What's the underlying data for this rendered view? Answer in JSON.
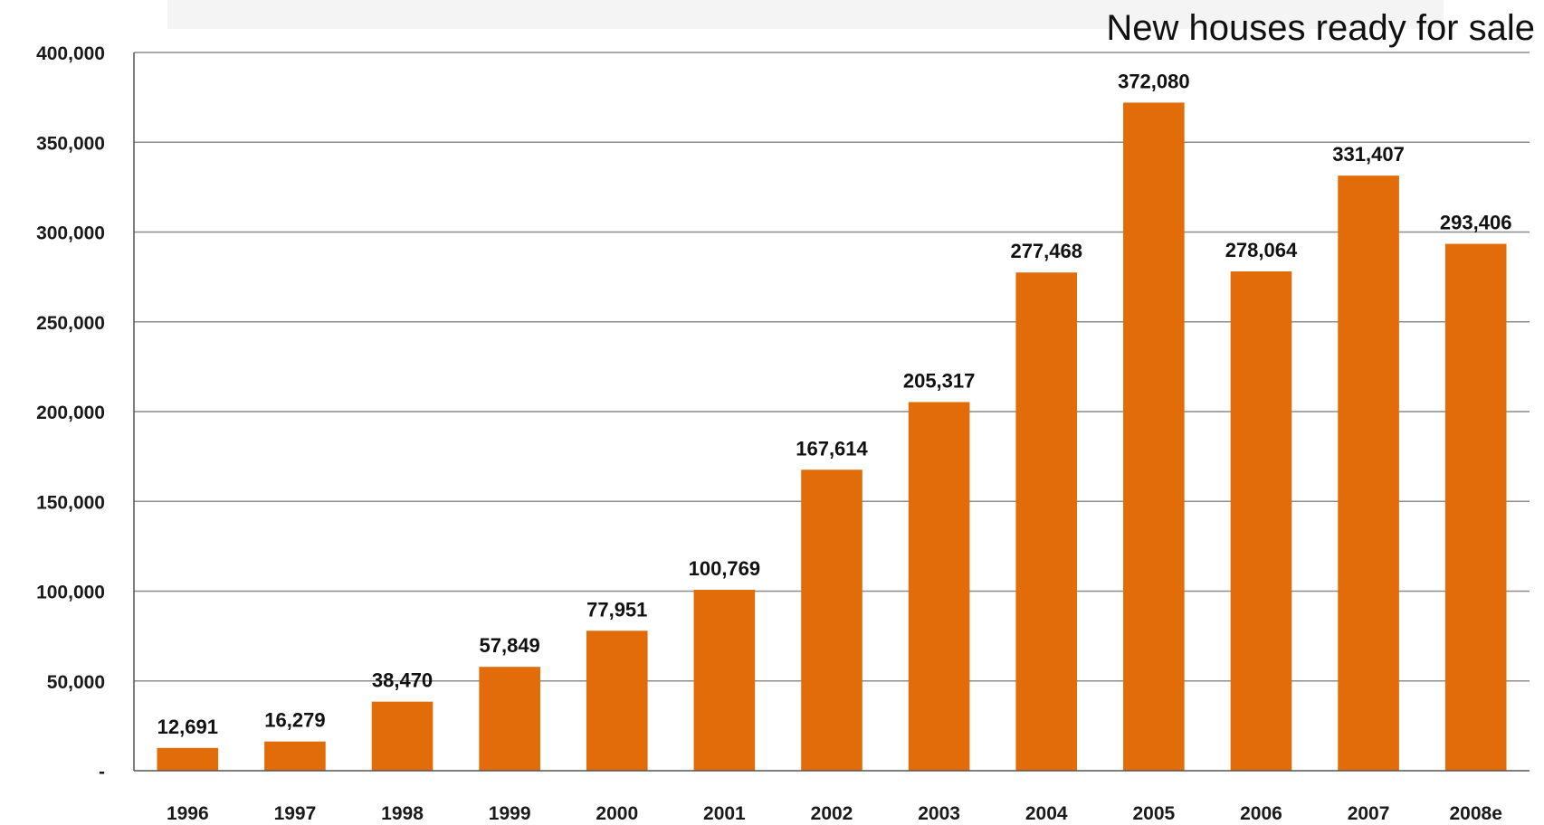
{
  "colors": {
    "bar": "#E36C0A",
    "grid": "#8c8c8c",
    "axis": "#555555",
    "text": "#111111"
  },
  "chart_data": {
    "type": "bar",
    "title": "New houses ready for sale",
    "xlabel": "",
    "ylabel": "",
    "categories": [
      "1996",
      "1997",
      "1998",
      "1999",
      "2000",
      "2001",
      "2002",
      "2003",
      "2004",
      "2005",
      "2006",
      "2007",
      "2008e"
    ],
    "values": [
      12691,
      16279,
      38470,
      57849,
      77951,
      100769,
      167614,
      205317,
      277468,
      372080,
      278064,
      331407,
      293406
    ],
    "value_labels": [
      "12,691",
      "16,279",
      "38,470",
      "57,849",
      "77,951",
      "100,769",
      "167,614",
      "205,317",
      "277,468",
      "372,080",
      "278,064",
      "331,407",
      "293,406"
    ],
    "ylim": [
      0,
      400000
    ],
    "yticks": [
      0,
      50000,
      100000,
      150000,
      200000,
      250000,
      300000,
      350000,
      400000
    ],
    "ytick_labels": [
      "-",
      "50,000",
      "100,000",
      "150,000",
      "200,000",
      "250,000",
      "300,000",
      "350,000",
      "400,000"
    ],
    "grid": true,
    "legend": "none"
  }
}
